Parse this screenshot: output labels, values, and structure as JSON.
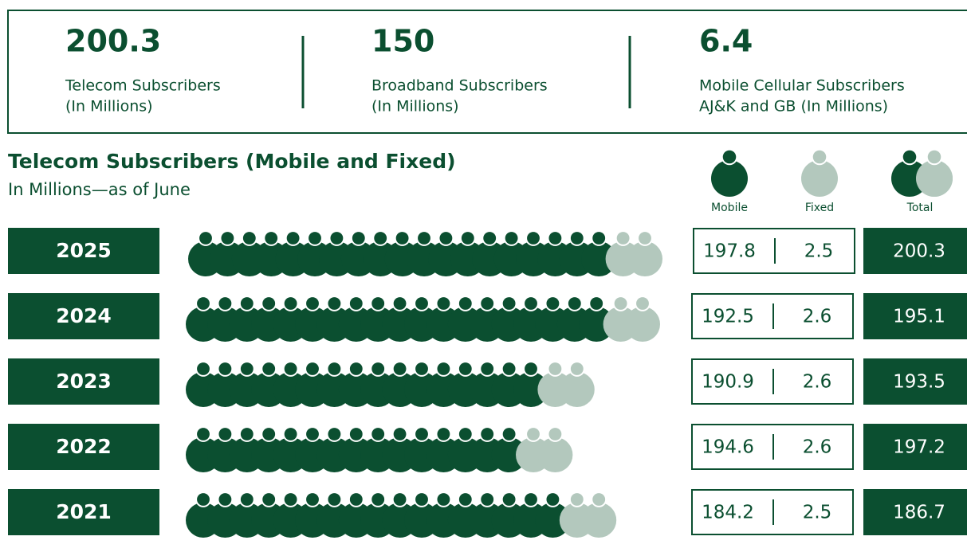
{
  "stats": [
    {
      "value": "200.3",
      "label": "Telecom Subscribers",
      "unit": "(In Millions)"
    },
    {
      "value": "150",
      "label": "Broadband Subscribers",
      "unit": "(In Millions)"
    },
    {
      "value": "6.4",
      "label": "Mobile Cellular Subscribers",
      "unit": "AJ&K and GB (In Millions)"
    }
  ],
  "section": {
    "title": "Telecom Subscribers (Mobile and Fixed)",
    "subtitle": "In Millions—as of June"
  },
  "legend": [
    "Mobile",
    "Fixed",
    "Total"
  ],
  "rows": [
    {
      "year": "2025",
      "mobile": "197.8",
      "fixed": "2.5",
      "total": "200.3"
    },
    {
      "year": "2024",
      "mobile": "192.5",
      "fixed": "2.6",
      "total": "195.1"
    },
    {
      "year": "2023",
      "mobile": "190.9",
      "fixed": "2.6",
      "total": "193.5"
    },
    {
      "year": "2022",
      "mobile": "194.6",
      "fixed": "2.6",
      "total": "197.2"
    },
    {
      "year": "2021",
      "mobile": "184.2",
      "fixed": "2.5",
      "total": "186.7"
    }
  ]
}
